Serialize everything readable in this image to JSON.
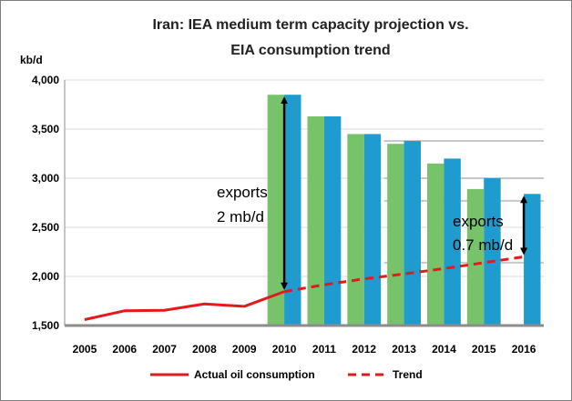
{
  "chart_data": {
    "type": "bar",
    "title_lines": [
      "Iran: IEA medium term  capacity projection vs.",
      "EIA consumption trend"
    ],
    "ylabel": "kb/d",
    "ylim": [
      1500,
      4000
    ],
    "y_ticks": [
      1500,
      2000,
      2500,
      3000,
      3500,
      4000
    ],
    "y_tick_labels": [
      "1,500",
      "2,000",
      "2,500",
      "3,000",
      "3,500",
      "4,000"
    ],
    "categories": [
      "2005",
      "2006",
      "2007",
      "2008",
      "2009",
      "2010",
      "2011",
      "2012",
      "2013",
      "2014",
      "2015",
      "2016"
    ],
    "series": [
      {
        "type": "bar",
        "color": "#77c36a",
        "values": [
          null,
          null,
          null,
          null,
          null,
          3850,
          3630,
          3450,
          3350,
          3150,
          2890,
          null
        ]
      },
      {
        "type": "bar",
        "color": "#1f9bd0",
        "values": [
          null,
          null,
          null,
          null,
          null,
          3850,
          3630,
          3450,
          3380,
          3200,
          3000,
          2840
        ]
      },
      {
        "type": "line",
        "name": "Actual oil consumption",
        "color": "#e31a1c",
        "dash": "solid",
        "values": [
          1560,
          1650,
          1655,
          1720,
          1695,
          1845,
          null,
          null,
          null,
          null,
          null,
          null
        ]
      },
      {
        "type": "line",
        "name": "Trend",
        "color": "#e31a1c",
        "dash": "dashed",
        "values": [
          null,
          null,
          null,
          null,
          null,
          1845,
          1915,
          1975,
          2025,
          2080,
          2140,
          2200
        ]
      }
    ],
    "reference_lines": [
      3380,
      3000,
      2770,
      2140
    ],
    "grid": true,
    "legend_position": "bottom",
    "annotations": [
      {
        "lines": [
          "exports",
          "2 mb/d"
        ],
        "arrow_category": "2010",
        "arrow_from": 1845,
        "arrow_to": 3850
      },
      {
        "lines": [
          "exports",
          "0.7 mb/d"
        ],
        "arrow_category": "2016",
        "arrow_from": 2200,
        "arrow_to": 2840
      }
    ]
  },
  "colors": {
    "gridline": "#d9d9d9",
    "reference_line": "#c8c8c8",
    "axis": "#8c8c8c"
  }
}
